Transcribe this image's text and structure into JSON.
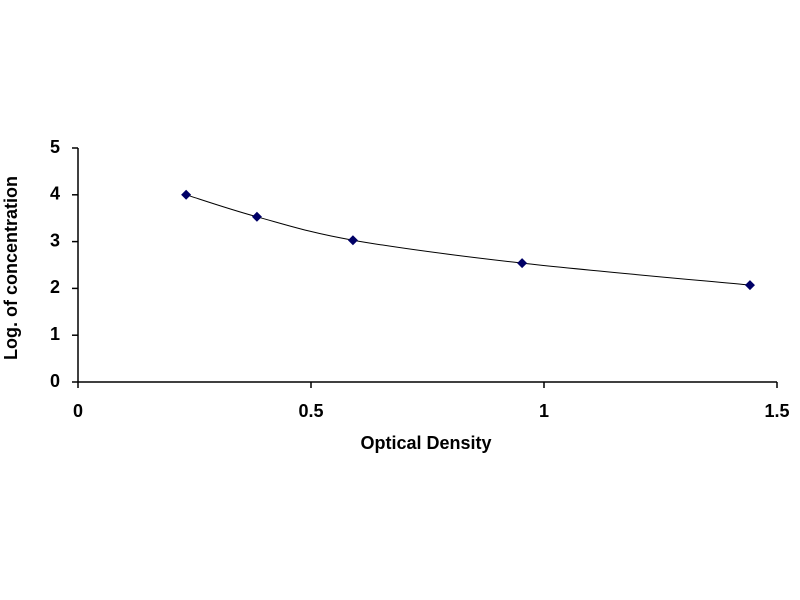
{
  "chart_data": {
    "type": "scatter",
    "x_label": "Optical Density",
    "y_label": "Log. of concentration",
    "x": [
      0.232,
      0.384,
      0.59,
      0.953,
      1.442
    ],
    "values": [
      4.0,
      3.53,
      3.03,
      2.54,
      2.07
    ],
    "color": "#000066",
    "line_color": "#000000",
    "smooth": true,
    "xlim": [
      0,
      1.5
    ],
    "xticks": [
      0,
      0.5,
      1,
      1.5
    ],
    "ylim": [
      0,
      5
    ],
    "yticks": [
      0,
      1,
      2,
      3,
      4,
      5
    ]
  }
}
